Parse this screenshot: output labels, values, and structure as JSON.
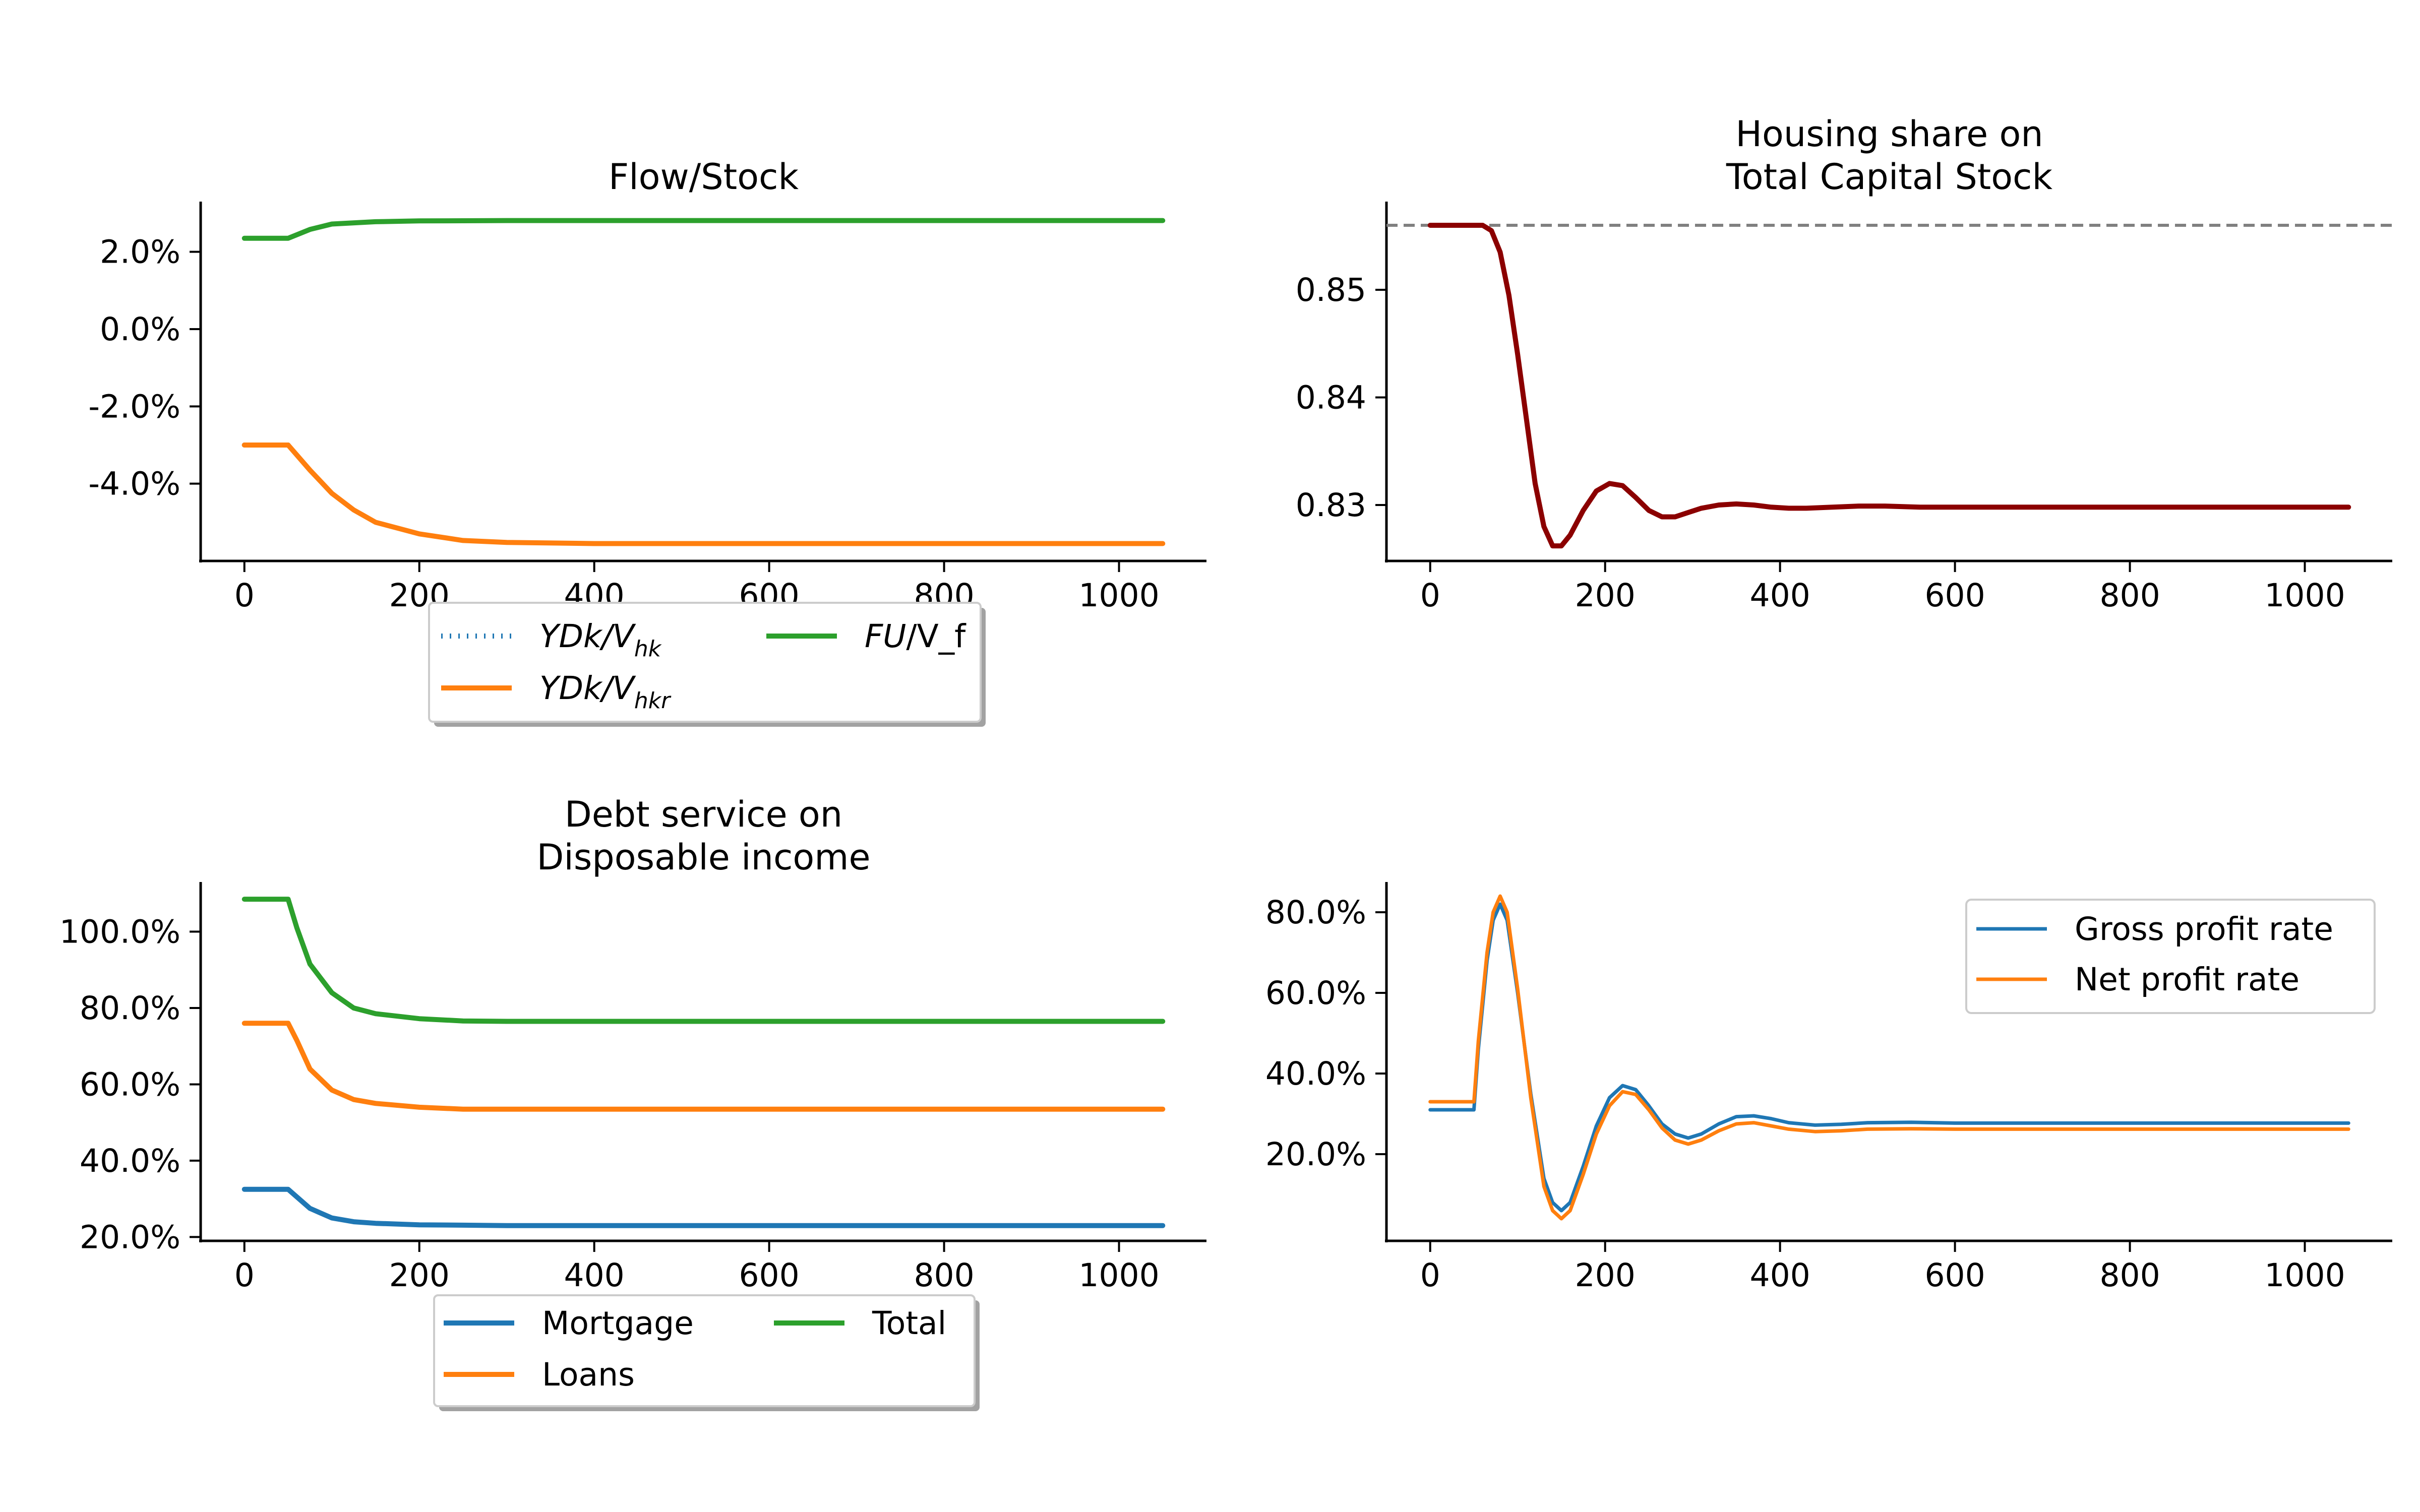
{
  "chart_data": [
    {
      "type": "line",
      "title": "Flow/Stock",
      "xlim": [
        -50,
        1100
      ],
      "ylim": [
        -0.06,
        0.033
      ],
      "y_format": "percent",
      "xticks": [
        "0",
        "200",
        "400",
        "600",
        "800",
        "1000"
      ],
      "yticks": [
        "2.0%",
        "0.0%",
        "-2.0%",
        "-4.0%"
      ],
      "grid": false,
      "legend_position": "below",
      "series": [
        {
          "name": "YDk/Vhk",
          "legend_parts": [
            "YDk/V",
            "hk"
          ],
          "color": "#1f77b4",
          "dash": "dotted",
          "x": [
            0,
            50
          ],
          "y": [
            -0.03,
            -0.03
          ]
        },
        {
          "name": "YDk/Vhkr",
          "legend_parts": [
            "YDk/V",
            "hkr"
          ],
          "color": "#ff7f0e",
          "dash": "solid",
          "x": [
            0,
            50,
            75,
            100,
            125,
            150,
            200,
            250,
            300,
            400,
            500,
            700,
            1050
          ],
          "y": [
            -0.03,
            -0.03,
            -0.0365,
            -0.0425,
            -0.0468,
            -0.05,
            -0.053,
            -0.0547,
            -0.0552,
            -0.0555,
            -0.0555,
            -0.0555,
            -0.0555
          ]
        },
        {
          "name": "FU/V_f",
          "legend_parts": [
            "FU",
            "/V_f"
          ],
          "color": "#2ca02c",
          "dash": "solid",
          "x": [
            0,
            50,
            75,
            100,
            150,
            200,
            300,
            500,
            1050
          ],
          "y": [
            0.0235,
            0.0235,
            0.0258,
            0.0272,
            0.0278,
            0.028,
            0.0281,
            0.0281,
            0.0281
          ]
        }
      ]
    },
    {
      "type": "line",
      "title": "Housing share on\nTotal Capital Stock",
      "title_lines": [
        "Housing share on",
        "Total Capital Stock"
      ],
      "xlim": [
        -50,
        1100
      ],
      "ylim": [
        0.8248,
        0.8582
      ],
      "xticks": [
        "0",
        "200",
        "400",
        "600",
        "800",
        "1000"
      ],
      "yticks": [
        "0.85",
        "0.84",
        "0.83"
      ],
      "grid": false,
      "reference_line": {
        "y": 0.856,
        "color": "#808080",
        "dash": "dashed"
      },
      "series": [
        {
          "color": "#8b0000",
          "x": [
            0,
            60,
            70,
            80,
            90,
            100,
            110,
            120,
            130,
            140,
            150,
            160,
            175,
            190,
            205,
            220,
            235,
            250,
            265,
            280,
            295,
            310,
            330,
            350,
            370,
            390,
            410,
            430,
            460,
            490,
            520,
            560,
            600,
            700,
            800,
            1050
          ],
          "y": [
            0.856,
            0.856,
            0.8555,
            0.8535,
            0.8495,
            0.844,
            0.838,
            0.832,
            0.828,
            0.8262,
            0.8262,
            0.8272,
            0.8295,
            0.8313,
            0.832,
            0.8318,
            0.8307,
            0.8295,
            0.8289,
            0.8289,
            0.8293,
            0.8297,
            0.83,
            0.8301,
            0.83,
            0.8298,
            0.8297,
            0.8297,
            0.8298,
            0.8299,
            0.8299,
            0.8298,
            0.8298,
            0.8298,
            0.8298,
            0.8298
          ]
        }
      ]
    },
    {
      "type": "line",
      "title": "Debt service on\nDisposable income",
      "title_lines": [
        "Debt service on",
        "Disposable income"
      ],
      "xlim": [
        -50,
        1100
      ],
      "ylim": [
        0.19,
        1.13
      ],
      "y_format": "percent",
      "xticks": [
        "0",
        "200",
        "400",
        "600",
        "800",
        "1000"
      ],
      "yticks": [
        "100.0%",
        "80.0%",
        "60.0%",
        "40.0%",
        "20.0%"
      ],
      "grid": false,
      "legend_position": "below",
      "series": [
        {
          "name": "Mortgage",
          "color": "#1f77b4",
          "dash": "solid",
          "x": [
            0,
            50,
            60,
            75,
            100,
            125,
            150,
            200,
            250,
            300,
            400,
            1050
          ],
          "y": [
            0.325,
            0.325,
            0.305,
            0.275,
            0.25,
            0.24,
            0.236,
            0.232,
            0.231,
            0.23,
            0.23,
            0.23
          ]
        },
        {
          "name": "Loans",
          "color": "#ff7f0e",
          "dash": "solid",
          "x": [
            0,
            50,
            60,
            75,
            100,
            125,
            150,
            200,
            250,
            300,
            400,
            1050
          ],
          "y": [
            0.76,
            0.76,
            0.715,
            0.64,
            0.585,
            0.56,
            0.55,
            0.54,
            0.535,
            0.535,
            0.535,
            0.535
          ]
        },
        {
          "name": "Total",
          "color": "#2ca02c",
          "dash": "solid",
          "x": [
            0,
            50,
            60,
            75,
            100,
            125,
            150,
            200,
            250,
            300,
            400,
            1050
          ],
          "y": [
            1.085,
            1.085,
            1.01,
            0.915,
            0.84,
            0.8,
            0.785,
            0.772,
            0.766,
            0.765,
            0.765,
            0.765
          ]
        }
      ]
    },
    {
      "type": "line",
      "title": "",
      "xlim": [
        -50,
        1100
      ],
      "ylim": [
        -0.015,
        0.875
      ],
      "y_format": "percent",
      "xticks": [
        "0",
        "200",
        "400",
        "600",
        "800",
        "1000"
      ],
      "yticks": [
        "80.0%",
        "60.0%",
        "40.0%",
        "20.0%"
      ],
      "grid": false,
      "legend_position": "upper right",
      "series": [
        {
          "name": "Gross profit rate",
          "color": "#1f77b4",
          "dash": "solid",
          "x": [
            0,
            50,
            55,
            65,
            72,
            80,
            88,
            100,
            115,
            130,
            140,
            150,
            160,
            175,
            190,
            205,
            220,
            235,
            250,
            265,
            280,
            295,
            310,
            330,
            350,
            370,
            390,
            410,
            440,
            470,
            500,
            550,
            600,
            700,
            800,
            1050
          ],
          "y": [
            0.31,
            0.31,
            0.46,
            0.68,
            0.78,
            0.82,
            0.78,
            0.6,
            0.35,
            0.14,
            0.08,
            0.06,
            0.08,
            0.17,
            0.27,
            0.34,
            0.37,
            0.36,
            0.32,
            0.275,
            0.25,
            0.24,
            0.25,
            0.275,
            0.293,
            0.295,
            0.288,
            0.278,
            0.272,
            0.274,
            0.278,
            0.279,
            0.277,
            0.277,
            0.277,
            0.277
          ]
        },
        {
          "name": "Net profit rate",
          "color": "#ff7f0e",
          "dash": "solid",
          "x": [
            0,
            50,
            55,
            65,
            72,
            80,
            88,
            100,
            115,
            130,
            140,
            150,
            160,
            175,
            190,
            205,
            220,
            235,
            250,
            265,
            280,
            295,
            310,
            330,
            350,
            370,
            390,
            410,
            440,
            470,
            500,
            550,
            600,
            700,
            800,
            1050
          ],
          "y": [
            0.33,
            0.33,
            0.48,
            0.7,
            0.8,
            0.84,
            0.8,
            0.61,
            0.34,
            0.12,
            0.06,
            0.04,
            0.06,
            0.15,
            0.25,
            0.32,
            0.355,
            0.348,
            0.31,
            0.265,
            0.235,
            0.225,
            0.235,
            0.258,
            0.275,
            0.278,
            0.27,
            0.262,
            0.256,
            0.258,
            0.262,
            0.263,
            0.262,
            0.262,
            0.262,
            0.262
          ]
        }
      ]
    }
  ]
}
